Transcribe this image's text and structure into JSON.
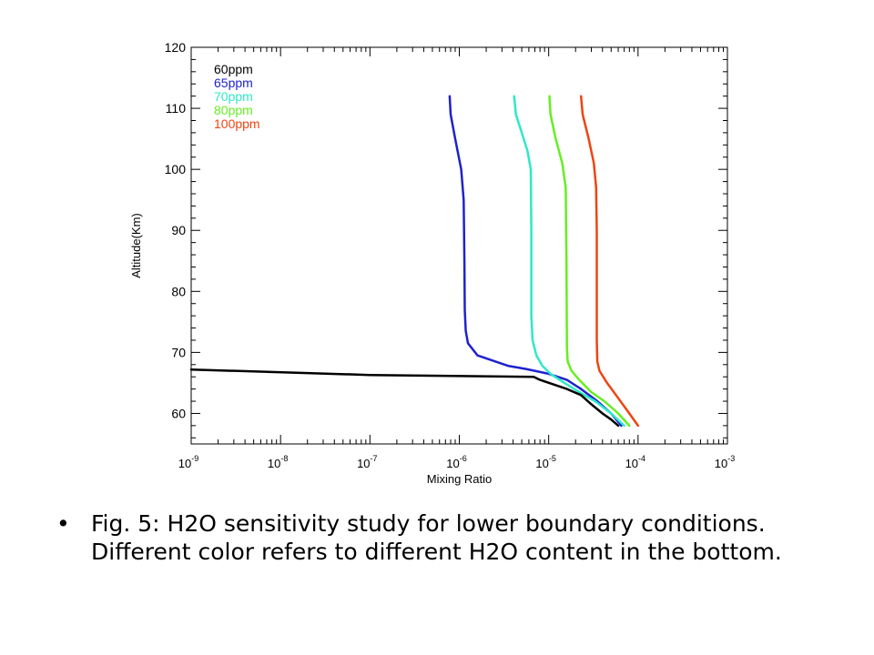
{
  "chart_data": {
    "type": "line",
    "title": "",
    "xlabel": "Mixing Ratio",
    "ylabel": "Altitude(Km)",
    "xscale": "log",
    "xlim": [
      1e-09,
      0.001
    ],
    "ylim": [
      55,
      120
    ],
    "x_ticks": [
      {
        "value": 1e-09,
        "mant": "10",
        "exp": "-9"
      },
      {
        "value": 1e-08,
        "mant": "10",
        "exp": "-8"
      },
      {
        "value": 1e-07,
        "mant": "10",
        "exp": "-7"
      },
      {
        "value": 1e-06,
        "mant": "10",
        "exp": "-6"
      },
      {
        "value": 1e-05,
        "mant": "10",
        "exp": "-5"
      },
      {
        "value": 0.0001,
        "mant": "10",
        "exp": "-4"
      },
      {
        "value": 0.001,
        "mant": "10",
        "exp": "-3"
      }
    ],
    "y_ticks": [
      "60",
      "70",
      "80",
      "90",
      "100",
      "110",
      "120"
    ],
    "legend": "top-left",
    "series": [
      {
        "name": "60ppm",
        "color": "#000000",
        "x": [
          6e-05,
          5e-05,
          4e-05,
          3e-05,
          2.3e-05,
          1.6e-05,
          8e-06,
          6.8e-06,
          1e-07,
          1e-09
        ],
        "y": [
          58,
          59,
          60,
          61.5,
          63,
          64,
          65.5,
          66,
          66.3,
          67.2
        ]
      },
      {
        "name": "65ppm",
        "color": "#1f22cc",
        "x": [
          6.5e-05,
          5e-05,
          3.5e-05,
          2.3e-05,
          1.6e-05,
          1e-05,
          5.5e-06,
          3.5e-06,
          1.6e-06,
          1.25e-06,
          1.18e-06,
          1.15e-06,
          1.14e-06,
          1.12e-06,
          1.05e-06,
          9e-07,
          8e-07,
          7.8e-07
        ],
        "y": [
          58,
          60,
          62,
          64,
          65.5,
          66.5,
          67.3,
          67.8,
          69.5,
          71.5,
          73.5,
          77,
          85,
          95,
          100,
          105,
          109,
          112
        ]
      },
      {
        "name": "70ppm",
        "color": "#2ee8c8",
        "x": [
          7e-05,
          5e-05,
          3.3e-05,
          2.2e-05,
          1.5e-05,
          1.05e-05,
          8.5e-06,
          7.3e-06,
          6.6e-06,
          6.4e-06,
          6.4e-06,
          6.3e-06,
          5.8e-06,
          5e-06,
          4.3e-06,
          4.1e-06
        ],
        "y": [
          58,
          60,
          62,
          63.5,
          65,
          66.5,
          67.8,
          69.5,
          72,
          76,
          90,
          100,
          103,
          106,
          109,
          112
        ]
      },
      {
        "name": "80ppm",
        "color": "#66ee22",
        "x": [
          8e-05,
          6e-05,
          4.2e-05,
          3e-05,
          2.2e-05,
          1.8e-05,
          1.63e-05,
          1.6e-05,
          1.58e-05,
          1.55e-05,
          1.42e-05,
          1.2e-05,
          1.05e-05,
          1.02e-05
        ],
        "y": [
          58,
          60,
          62,
          63.5,
          65.5,
          67,
          68.5,
          71,
          85,
          97,
          101,
          105,
          109,
          112
        ]
      },
      {
        "name": "100ppm",
        "color": "#ee4411",
        "x": [
          0.0001,
          8e-05,
          6e-05,
          4.5e-05,
          3.7e-05,
          3.5e-05,
          3.45e-05,
          3.45e-05,
          3.4e-05,
          3.2e-05,
          2.8e-05,
          2.4e-05,
          2.3e-05
        ],
        "y": [
          58,
          60,
          62.5,
          65,
          67,
          68.5,
          72,
          90,
          97,
          101,
          105,
          109,
          112
        ]
      }
    ]
  },
  "caption": {
    "bullet": "•",
    "text": "Fig. 5: H2O sensitivity study for lower boundary conditions. Different color refers to different H2O content in the bottom."
  }
}
